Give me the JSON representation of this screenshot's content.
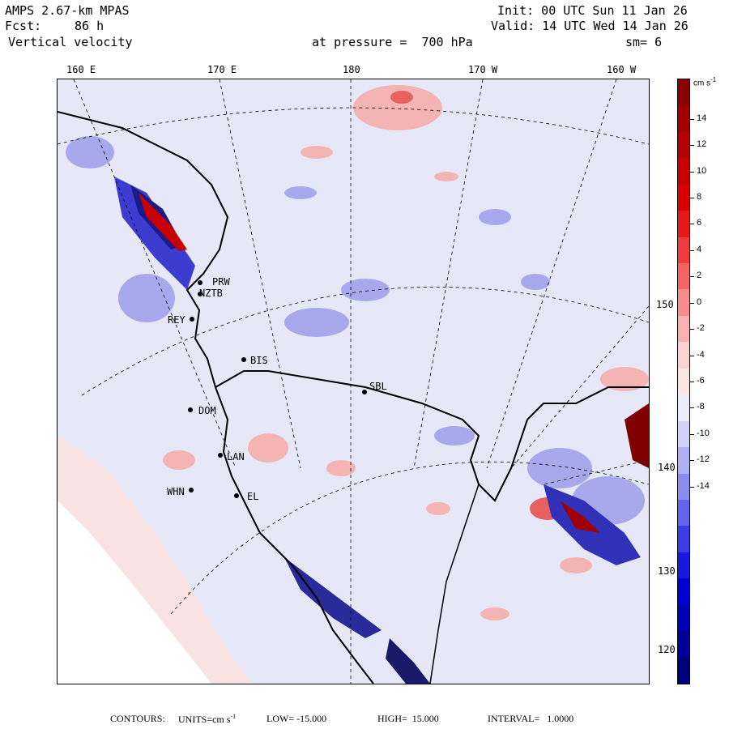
{
  "header": {
    "model": "AMPS 2.67-km MPAS",
    "init": "Init: 00 UTC Sun 11 Jan 26",
    "fcst_label": "Fcst:",
    "fcst_value": "86 h",
    "valid": "Valid: 14 UTC Wed 14 Jan 26",
    "field": "Vertical velocity",
    "level": "at pressure =  700 hPa",
    "smoothing": "sm= 6"
  },
  "longitude_labels": [
    "160 E",
    "170 E",
    "180",
    "170 W",
    "160 W"
  ],
  "latitude_labels": [
    "150 W",
    "140 W",
    "130 W",
    "120 W"
  ],
  "stations": [
    {
      "id": "MCM",
      "text": "PRW"
    },
    {
      "id": "ZTB",
      "text": "NZTB"
    },
    {
      "id": "REY",
      "text": "REY"
    },
    {
      "id": "BIS",
      "text": "BIS"
    },
    {
      "id": "SBL",
      "text": "SBL"
    },
    {
      "id": "DOM",
      "text": "DOM"
    },
    {
      "id": "LAN",
      "text": "LAN"
    },
    {
      "id": "WHN",
      "text": "WHN"
    },
    {
      "id": "EL",
      "text": "EL"
    }
  ],
  "colorbar": {
    "unit": "cm s",
    "unit_exp": "-1",
    "labels": [
      "14",
      "12",
      "10",
      "8",
      "6",
      "4",
      "2",
      "0",
      "-2",
      "-4",
      "-6",
      "-8",
      "-10",
      "-12",
      "-14"
    ],
    "colors": [
      "#8b0000",
      "#a00000",
      "#b40000",
      "#c80000",
      "#d80000",
      "#e81818",
      "#f03c3c",
      "#f46464",
      "#f88c8c",
      "#f8b0b0",
      "#fad2d2",
      "#fbe6e6",
      "#ececfa",
      "#d2d2f8",
      "#b0b0f4",
      "#8c8cf0",
      "#6464ec",
      "#3c3ce8",
      "#1818e0",
      "#0000d0",
      "#0000b4",
      "#000096",
      "#00007a"
    ]
  },
  "footer": {
    "contours_label": "CONTOURS:",
    "units_label": "UNITS=cm s",
    "units_exp": "-1",
    "low": "LOW= -15.000",
    "high": "HIGH=  15.000",
    "interval": "INTERVAL=   1.0000"
  },
  "colors": {
    "background_pos": "#f9e2e2",
    "background_neg": "#e6e8f8",
    "strong_pos": "#c80000",
    "strong_neg": "#1010c8"
  }
}
